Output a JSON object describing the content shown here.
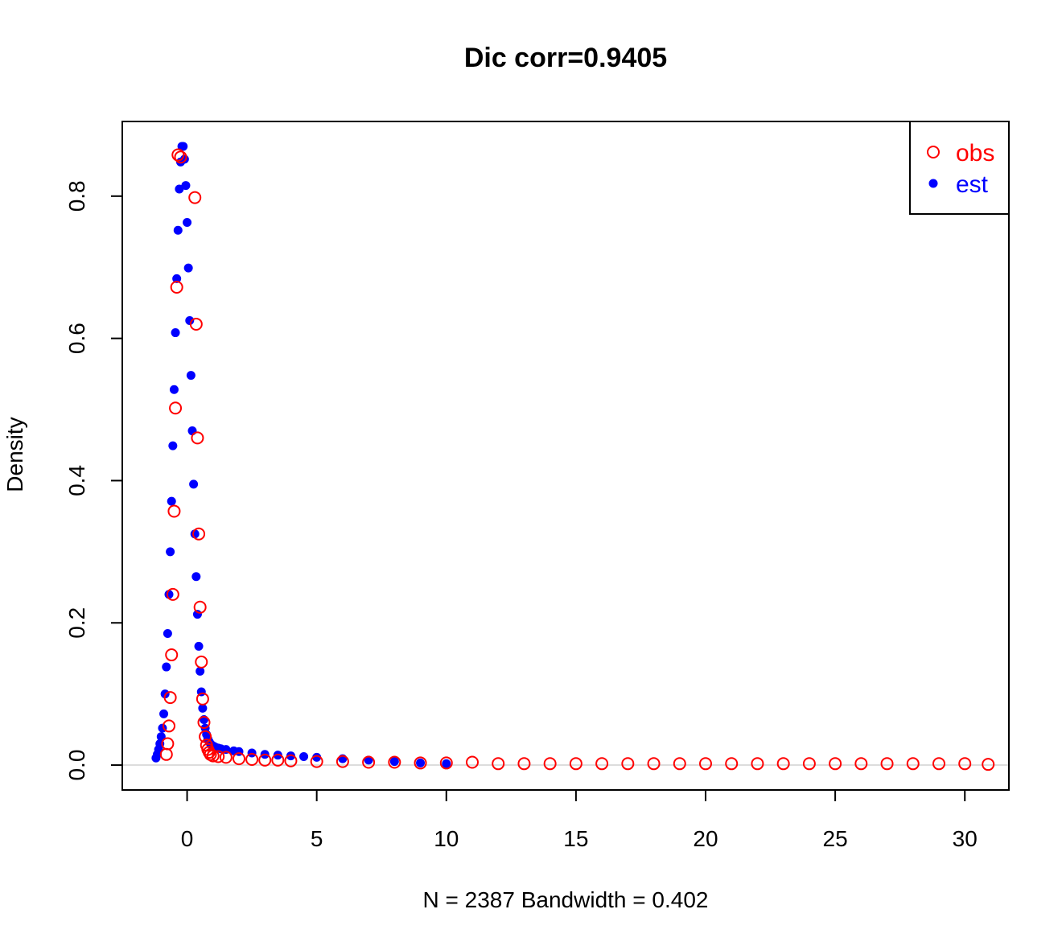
{
  "chart_data": {
    "type": "scatter",
    "title": "Dic corr=0.9405",
    "xlabel": "N = 2387   Bandwidth = 0.402",
    "ylabel": "Density",
    "xlim": [
      -2.5,
      31.7
    ],
    "ylim": [
      -0.035,
      0.905
    ],
    "x_ticks": [
      0,
      5,
      10,
      15,
      20,
      25,
      30
    ],
    "y_ticks": [
      0.0,
      0.2,
      0.4,
      0.6,
      0.8
    ],
    "y_tick_labels": [
      "0.0",
      "0.2",
      "0.4",
      "0.6",
      "0.8"
    ],
    "zero_line": true,
    "grid": false,
    "legend": "top-right",
    "colors": {
      "obs": "#ff0000",
      "est": "#0000ff"
    },
    "series": [
      {
        "name": "obs",
        "marker": "open-circle",
        "color": "#ff0000",
        "x": [
          -0.8,
          -0.75,
          -0.7,
          -0.65,
          -0.6,
          -0.55,
          -0.5,
          -0.45,
          -0.4,
          -0.35,
          -0.25,
          0.3,
          0.35,
          0.4,
          0.45,
          0.5,
          0.55,
          0.6,
          0.65,
          0.7,
          0.75,
          0.8,
          0.85,
          0.9,
          1.0,
          1.2,
          1.5,
          2.0,
          2.5,
          3.0,
          3.5,
          4.0,
          5.0,
          6.0,
          7.0,
          8.0,
          9.0,
          10.0,
          11.0,
          12.0,
          13.0,
          14.0,
          15.0,
          16.0,
          17.0,
          18.0,
          19.0,
          20.0,
          21.0,
          22.0,
          23.0,
          24.0,
          25.0,
          26.0,
          27.0,
          28.0,
          29.0,
          30.0,
          30.9
        ],
        "y": [
          0.015,
          0.03,
          0.055,
          0.095,
          0.155,
          0.24,
          0.357,
          0.502,
          0.672,
          0.858,
          0.855,
          0.798,
          0.62,
          0.46,
          0.325,
          0.222,
          0.145,
          0.093,
          0.06,
          0.04,
          0.028,
          0.022,
          0.018,
          0.015,
          0.013,
          0.012,
          0.011,
          0.009,
          0.008,
          0.007,
          0.007,
          0.006,
          0.005,
          0.005,
          0.004,
          0.004,
          0.003,
          0.003,
          0.004,
          0.002,
          0.002,
          0.002,
          0.002,
          0.002,
          0.002,
          0.002,
          0.002,
          0.002,
          0.002,
          0.002,
          0.002,
          0.002,
          0.002,
          0.002,
          0.002,
          0.002,
          0.002,
          0.002,
          0.001
        ]
      },
      {
        "name": "est",
        "marker": "filled-circle",
        "color": "#0000ff",
        "x": [
          -1.2,
          -1.15,
          -1.1,
          -1.05,
          -1.0,
          -0.95,
          -0.9,
          -0.85,
          -0.8,
          -0.75,
          -0.7,
          -0.65,
          -0.6,
          -0.55,
          -0.5,
          -0.45,
          -0.4,
          -0.35,
          -0.3,
          -0.25,
          -0.2,
          -0.15,
          -0.1,
          -0.05,
          0.0,
          0.05,
          0.1,
          0.15,
          0.2,
          0.25,
          0.3,
          0.35,
          0.4,
          0.45,
          0.5,
          0.55,
          0.6,
          0.65,
          0.7,
          0.75,
          0.8,
          0.85,
          0.9,
          0.95,
          1.0,
          1.05,
          1.1,
          1.2,
          1.3,
          1.5,
          1.8,
          2.0,
          2.5,
          3.0,
          3.5,
          4.0,
          4.5,
          5.0,
          6.0,
          7.0,
          8.0,
          9.0,
          10.0
        ],
        "y": [
          0.01,
          0.015,
          0.022,
          0.03,
          0.04,
          0.052,
          0.072,
          0.1,
          0.138,
          0.185,
          0.24,
          0.3,
          0.371,
          0.449,
          0.528,
          0.608,
          0.684,
          0.752,
          0.81,
          0.848,
          0.87,
          0.87,
          0.852,
          0.815,
          0.763,
          0.699,
          0.625,
          0.548,
          0.47,
          0.395,
          0.325,
          0.265,
          0.212,
          0.167,
          0.132,
          0.103,
          0.08,
          0.064,
          0.052,
          0.043,
          0.037,
          0.033,
          0.03,
          0.028,
          0.027,
          0.026,
          0.025,
          0.024,
          0.023,
          0.022,
          0.02,
          0.019,
          0.017,
          0.015,
          0.014,
          0.013,
          0.012,
          0.011,
          0.009,
          0.007,
          0.005,
          0.003,
          0.002
        ]
      }
    ]
  }
}
